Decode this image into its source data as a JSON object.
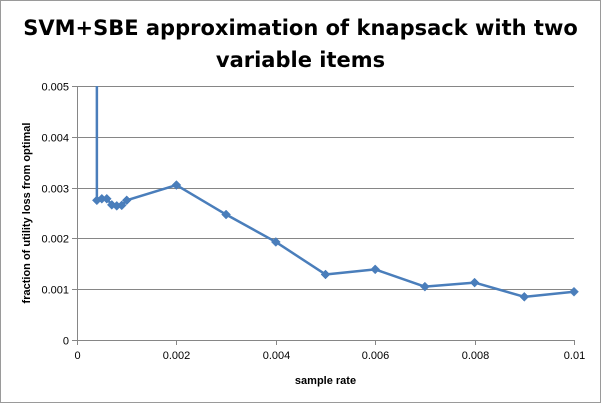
{
  "chart_data": {
    "type": "line",
    "title": "SVM+SBE approximation of knapsack with two variable items",
    "xlabel": "sample rate",
    "ylabel": "fraction of utility loss from optimal",
    "xlim": [
      0,
      0.01
    ],
    "ylim": [
      0,
      0.005
    ],
    "x_ticks": [
      "0",
      "0.002",
      "0.004",
      "0.006",
      "0.008",
      "0.01"
    ],
    "y_ticks": [
      "0",
      "0.001",
      "0.002",
      "0.003",
      "0.004",
      "0.005"
    ],
    "grid": "horizontal",
    "legend": "none",
    "series": [
      {
        "color": "#4a7ebb",
        "marker": "diamond",
        "x": [
          0.0004,
          0.0004,
          0.0005,
          0.0006,
          0.0007,
          0.0008,
          0.0009,
          0.001,
          0.002,
          0.003,
          0.004,
          0.005,
          0.006,
          0.007,
          0.008,
          0.009,
          0.01
        ],
        "y": [
          0.0052,
          0.00275,
          0.00278,
          0.00278,
          0.00266,
          0.00264,
          0.00265,
          0.00275,
          0.00305,
          0.00247,
          0.00193,
          0.00129,
          0.00139,
          0.00105,
          0.00113,
          0.00085,
          0.00095
        ]
      }
    ]
  }
}
